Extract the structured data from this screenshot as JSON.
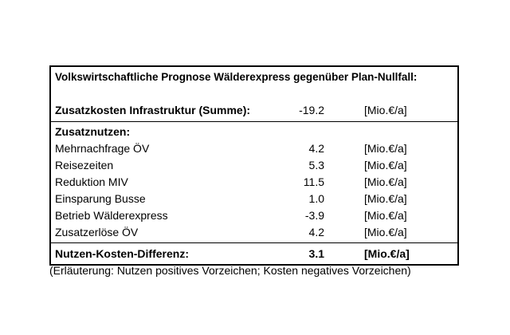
{
  "table": {
    "title": "Volkswirtschaftliche Prognose Wälderexpress gegenüber Plan-Nullfall:",
    "cost_row": {
      "label": "Zusatzkosten Infrastruktur (Summe):",
      "value": "-19.2",
      "unit": "[Mio.€/a]"
    },
    "benefits_header": "Zusatznutzen:",
    "benefit_rows": [
      {
        "label": "Mehrnachfrage ÖV",
        "value": "4.2",
        "unit": "[Mio.€/a]"
      },
      {
        "label": "Reisezeiten",
        "value": "5.3",
        "unit": "[Mio.€/a]"
      },
      {
        "label": "Reduktion MIV",
        "value": "11.5",
        "unit": "[Mio.€/a]"
      },
      {
        "label": "Einsparung Busse",
        "value": "1.0",
        "unit": "[Mio.€/a]"
      },
      {
        "label": "Betrieb Wälderexpress",
        "value": "-3.9",
        "unit": "[Mio.€/a]"
      },
      {
        "label": "Zusatzerlöse ÖV",
        "value": "4.2",
        "unit": "[Mio.€/a]"
      }
    ],
    "total_row": {
      "label": "Nutzen-Kosten-Differenz:",
      "value": "3.1",
      "unit": "[Mio.€/a]"
    }
  },
  "footnote": "(Erläuterung: Nutzen positives Vorzeichen; Kosten negatives Vorzeichen)",
  "colors": {
    "border": "#000000",
    "text": "#000000",
    "background": "#ffffff"
  }
}
